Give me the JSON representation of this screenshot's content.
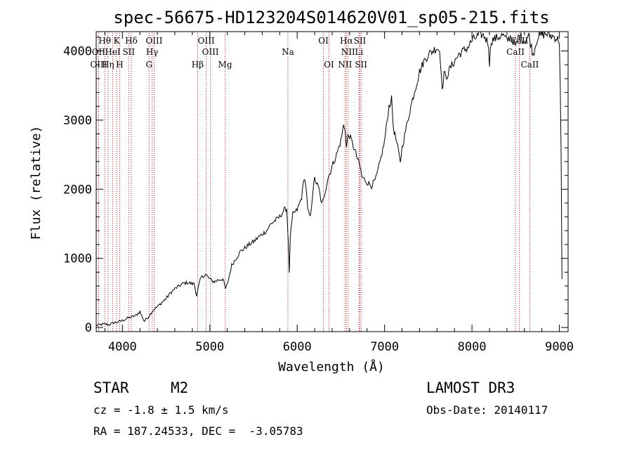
{
  "chart_data": {
    "type": "line",
    "title": "spec-56675-HD123204S014620V01_sp05-215.fits",
    "xlabel": "Wavelength (Å)",
    "ylabel": "Flux (relative)",
    "xlim": [
      3700,
      9100
    ],
    "ylim": [
      -60,
      4280
    ],
    "xticks": [
      4000,
      5000,
      6000,
      7000,
      8000,
      9000
    ],
    "yticks": [
      0,
      1000,
      2000,
      3000,
      4000
    ],
    "line_color": "#000000",
    "marker_color": "#b22222",
    "series": [
      {
        "name": "flux",
        "points": [
          [
            3700,
            30
          ],
          [
            3750,
            40
          ],
          [
            3800,
            50
          ],
          [
            3850,
            40
          ],
          [
            3900,
            70
          ],
          [
            3950,
            80
          ],
          [
            4000,
            100
          ],
          [
            4050,
            130
          ],
          [
            4100,
            150
          ],
          [
            4150,
            170
          ],
          [
            4200,
            230
          ],
          [
            4250,
            90
          ],
          [
            4300,
            160
          ],
          [
            4350,
            250
          ],
          [
            4400,
            300
          ],
          [
            4450,
            360
          ],
          [
            4500,
            420
          ],
          [
            4550,
            500
          ],
          [
            4600,
            560
          ],
          [
            4650,
            600
          ],
          [
            4700,
            640
          ],
          [
            4750,
            650
          ],
          [
            4800,
            630
          ],
          [
            4820,
            640
          ],
          [
            4850,
            460
          ],
          [
            4880,
            640
          ],
          [
            4900,
            720
          ],
          [
            4950,
            770
          ],
          [
            5000,
            700
          ],
          [
            5050,
            660
          ],
          [
            5100,
            690
          ],
          [
            5150,
            700
          ],
          [
            5180,
            560
          ],
          [
            5200,
            620
          ],
          [
            5250,
            900
          ],
          [
            5300,
            1000
          ],
          [
            5350,
            1100
          ],
          [
            5400,
            1150
          ],
          [
            5450,
            1200
          ],
          [
            5500,
            1240
          ],
          [
            5550,
            1300
          ],
          [
            5600,
            1350
          ],
          [
            5650,
            1400
          ],
          [
            5700,
            1500
          ],
          [
            5750,
            1550
          ],
          [
            5800,
            1600
          ],
          [
            5850,
            1700
          ],
          [
            5880,
            1720
          ],
          [
            5900,
            1200
          ],
          [
            5910,
            770
          ],
          [
            5920,
            1300
          ],
          [
            5950,
            1640
          ],
          [
            6000,
            1700
          ],
          [
            6050,
            1880
          ],
          [
            6080,
            2180
          ],
          [
            6100,
            2050
          ],
          [
            6120,
            1700
          ],
          [
            6150,
            1590
          ],
          [
            6180,
            1980
          ],
          [
            6200,
            2150
          ],
          [
            6250,
            2000
          ],
          [
            6280,
            1780
          ],
          [
            6300,
            1850
          ],
          [
            6350,
            2150
          ],
          [
            6400,
            2330
          ],
          [
            6450,
            2500
          ],
          [
            6500,
            2700
          ],
          [
            6530,
            2920
          ],
          [
            6550,
            2880
          ],
          [
            6563,
            2600
          ],
          [
            6580,
            2760
          ],
          [
            6600,
            2780
          ],
          [
            6620,
            2700
          ],
          [
            6650,
            2600
          ],
          [
            6700,
            2400
          ],
          [
            6720,
            2320
          ],
          [
            6740,
            2180
          ],
          [
            6760,
            2150
          ],
          [
            6800,
            2100
          ],
          [
            6850,
            2050
          ],
          [
            6900,
            2150
          ],
          [
            6950,
            2400
          ],
          [
            7000,
            2700
          ],
          [
            7050,
            3200
          ],
          [
            7080,
            3300
          ],
          [
            7100,
            2900
          ],
          [
            7150,
            2600
          ],
          [
            7180,
            2400
          ],
          [
            7200,
            2600
          ],
          [
            7250,
            2900
          ],
          [
            7300,
            3200
          ],
          [
            7350,
            3450
          ],
          [
            7400,
            3700
          ],
          [
            7450,
            3850
          ],
          [
            7500,
            3950
          ],
          [
            7550,
            4000
          ],
          [
            7600,
            4050
          ],
          [
            7630,
            4000
          ],
          [
            7650,
            3700
          ],
          [
            7660,
            3400
          ],
          [
            7680,
            3700
          ],
          [
            7700,
            3600
          ],
          [
            7750,
            3750
          ],
          [
            7800,
            3850
          ],
          [
            7850,
            3950
          ],
          [
            7900,
            4000
          ],
          [
            7950,
            4050
          ],
          [
            8000,
            4150
          ],
          [
            8050,
            4200
          ],
          [
            8100,
            4250
          ],
          [
            8150,
            4200
          ],
          [
            8190,
            4100
          ],
          [
            8200,
            3820
          ],
          [
            8220,
            4150
          ],
          [
            8300,
            4200
          ],
          [
            8350,
            4230
          ],
          [
            8400,
            4150
          ],
          [
            8450,
            4220
          ],
          [
            8500,
            4050
          ],
          [
            8530,
            4200
          ],
          [
            8550,
            4220
          ],
          [
            8600,
            4150
          ],
          [
            8650,
            4220
          ],
          [
            8700,
            3950
          ],
          [
            8750,
            4200
          ],
          [
            8800,
            4230
          ],
          [
            8850,
            4250
          ],
          [
            8900,
            4220
          ],
          [
            8950,
            4200
          ],
          [
            9000,
            4150
          ],
          [
            9010,
            3500
          ],
          [
            9020,
            2500
          ],
          [
            9030,
            700
          ]
        ]
      }
    ],
    "lines": [
      {
        "label": "Hθ",
        "wave": 3798,
        "row": 1
      },
      {
        "label": "K",
        "wave": 3934,
        "row": 1
      },
      {
        "label": "Hδ",
        "wave": 4102,
        "row": 1
      },
      {
        "label": "OIII",
        "wave": 4363,
        "row": 1
      },
      {
        "label": "OIII",
        "wave": 4959,
        "row": 1
      },
      {
        "label": "OI",
        "wave": 6300,
        "row": 1
      },
      {
        "label": "Hα",
        "wave": 6563,
        "row": 1
      },
      {
        "label": "SII",
        "wave": 6717,
        "row": 1
      },
      {
        "label": "CaII",
        "wave": 8542,
        "row": 1
      },
      {
        "label": "OII",
        "wave": 3727,
        "row": 2
      },
      {
        "label": "HeI",
        "wave": 3889,
        "row": 2
      },
      {
        "label": "SII",
        "wave": 4072,
        "row": 2
      },
      {
        "label": "Hγ",
        "wave": 4340,
        "row": 2
      },
      {
        "label": "OIII",
        "wave": 5007,
        "row": 2
      },
      {
        "label": "Na",
        "wave": 5893,
        "row": 2
      },
      {
        "label": "NII",
        "wave": 6583,
        "row": 2
      },
      {
        "label": "Li",
        "wave": 6708,
        "row": 2
      },
      {
        "label": "CaII",
        "wave": 8498,
        "row": 2
      },
      {
        "label": "OIII",
        "wave": 3727,
        "row": 3
      },
      {
        "label": "Hη",
        "wave": 3835,
        "row": 3
      },
      {
        "label": "H",
        "wave": 3969,
        "row": 3
      },
      {
        "label": "G",
        "wave": 4305,
        "row": 3
      },
      {
        "label": "Hβ",
        "wave": 4861,
        "row": 3
      },
      {
        "label": "Mg",
        "wave": 5175,
        "row": 3
      },
      {
        "label": "OI",
        "wave": 6364,
        "row": 3
      },
      {
        "label": "NII",
        "wave": 6548,
        "row": 3
      },
      {
        "label": "SII",
        "wave": 6731,
        "row": 3
      },
      {
        "label": "CaII",
        "wave": 8662,
        "row": 3
      }
    ]
  },
  "info": {
    "class_label": "STAR",
    "subclass": "M2",
    "survey": "LAMOST DR3",
    "cz": "cz = -1.8 ± 1.5 km/s",
    "obs_date": "Obs-Date: 20140117",
    "coords": "RA = 187.24533, DEC =  -3.05783"
  }
}
